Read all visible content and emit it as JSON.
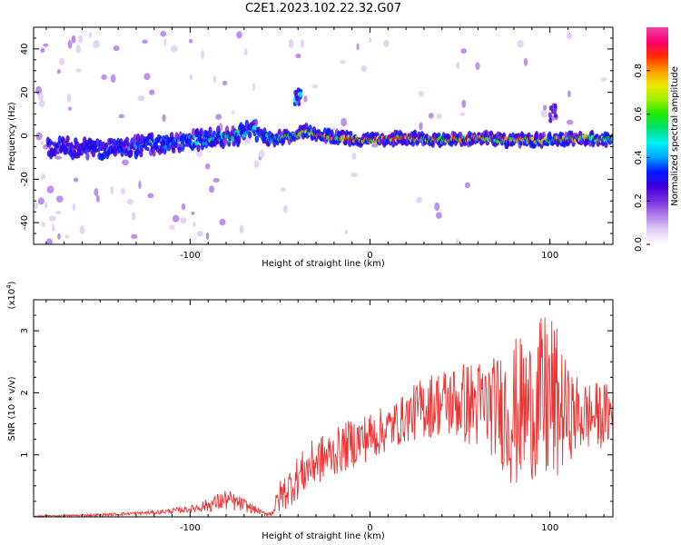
{
  "title": "C2E1.2023.102.22.32.G07",
  "colors": {
    "snr_line": "#ee3333",
    "axis": "#000000",
    "colormap": [
      "#ffffff",
      "#e2cdf6",
      "#b27fea",
      "#7a2ee0",
      "#3d00d8",
      "#0018ff",
      "#00a4ff",
      "#00f0f0",
      "#00e27a",
      "#1ee800",
      "#9cf000",
      "#f0e800",
      "#ff9a00",
      "#ff2a00",
      "#ff0070",
      "#ee44a8"
    ]
  },
  "chart_data": [
    {
      "type": "heatmap",
      "name": "spectrogram",
      "xlabel": "Height of straight line (km)",
      "ylabel": "Frequency (Hz)",
      "xlim": [
        -187,
        135
      ],
      "ylim": [
        -50,
        50
      ],
      "xticks": [
        -100,
        0,
        100
      ],
      "yticks": [
        -40,
        -20,
        0,
        20,
        40
      ],
      "colorbar": {
        "label": "Normalized spectral amplitude",
        "range": [
          0.0,
          1.0
        ],
        "ticks": [
          "0.0",
          "0.2",
          "0.4",
          "0.6",
          "0.8"
        ]
      },
      "ridge": {
        "x": [
          -170,
          -150,
          -130,
          -110,
          -90,
          -75,
          -65,
          -55,
          -45,
          -35,
          -25,
          -15,
          0,
          20,
          40,
          60,
          80,
          100,
          120,
          135
        ],
        "freq": [
          -5,
          -6,
          -5,
          -3,
          -2,
          0,
          3,
          -2,
          0,
          2,
          0,
          -1,
          -2,
          -1,
          -2,
          -1,
          -2,
          -2,
          -1,
          -2
        ],
        "amplitude": [
          0.3,
          0.35,
          0.4,
          0.45,
          0.5,
          0.55,
          0.5,
          0.55,
          0.7,
          0.8,
          0.95,
          0.9,
          0.92,
          0.95,
          0.9,
          0.85,
          0.85,
          0.8,
          0.85,
          0.8
        ]
      },
      "features": [
        {
          "x": -40,
          "freq": 18,
          "amplitude": 0.45
        },
        {
          "x": 102,
          "freq": 10,
          "amplitude": 0.3
        }
      ]
    },
    {
      "type": "line",
      "name": "snr",
      "xlabel": "Height of straight line (km)",
      "ylabel": "SNR (10 * v/v)",
      "y_multiplier": "(x10",
      "y_multiplier_exp": "4",
      "xlim": [
        -187,
        135
      ],
      "ylim": [
        0,
        3.5
      ],
      "xticks": [
        -100,
        0,
        100
      ],
      "yticks": [
        1,
        2,
        3
      ],
      "envelope": {
        "x": [
          -187,
          -150,
          -120,
          -100,
          -90,
          -80,
          -70,
          -60,
          -55,
          -50,
          -45,
          -40,
          -35,
          -30,
          -20,
          -10,
          0,
          10,
          20,
          30,
          40,
          50,
          60,
          70,
          80,
          90,
          100,
          110,
          120,
          135
        ],
        "low": [
          0.0,
          0.01,
          0.04,
          0.07,
          0.08,
          0.1,
          0.08,
          0.03,
          0.01,
          0.05,
          0.15,
          0.28,
          0.4,
          0.5,
          0.65,
          0.78,
          0.9,
          1.05,
          1.2,
          1.25,
          1.3,
          1.2,
          1.05,
          0.95,
          0.4,
          0.6,
          0.3,
          0.9,
          1.05,
          1.15
        ],
        "high": [
          0.02,
          0.05,
          0.1,
          0.18,
          0.3,
          0.45,
          0.3,
          0.1,
          0.08,
          0.6,
          0.8,
          1.0,
          1.15,
          1.3,
          1.4,
          1.6,
          1.7,
          1.8,
          2.0,
          2.3,
          2.4,
          2.5,
          2.55,
          2.6,
          2.9,
          2.95,
          3.45,
          2.4,
          2.2,
          2.15
        ]
      }
    }
  ]
}
